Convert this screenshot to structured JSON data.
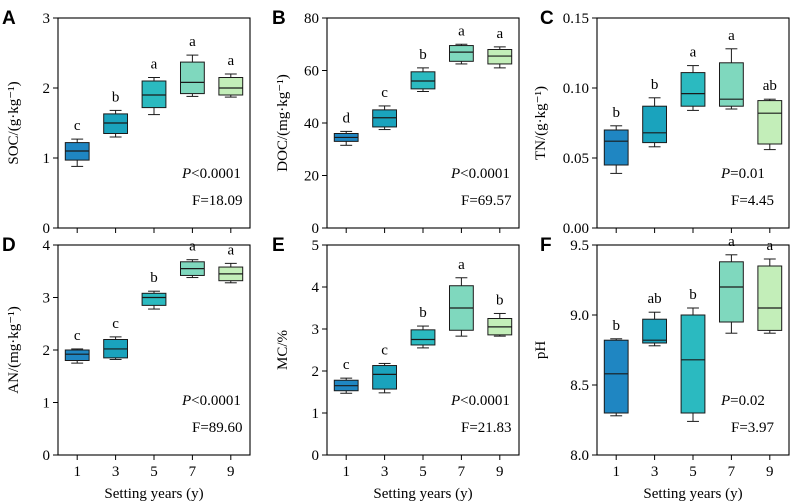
{
  "figure": {
    "xlabel": "Setting years (y)",
    "categories": [
      "1",
      "3",
      "5",
      "7",
      "9"
    ],
    "colors": [
      "#1f86c2",
      "#1aa3bd",
      "#2bbac0",
      "#7fd8be",
      "#c3eeb9"
    ]
  },
  "chart_data": [
    {
      "type": "box",
      "panel": "A",
      "ylabel": "SOC/(g·kg⁻¹)",
      "ylim": [
        0,
        3
      ],
      "yticks": [
        "0",
        "1",
        "2",
        "3"
      ],
      "boxes": [
        {
          "min": 0.88,
          "q1": 0.97,
          "median": 1.1,
          "q3": 1.22,
          "max": 1.27,
          "letter": "c"
        },
        {
          "min": 1.3,
          "q1": 1.35,
          "median": 1.5,
          "q3": 1.63,
          "max": 1.68,
          "letter": "b"
        },
        {
          "min": 1.62,
          "q1": 1.72,
          "median": 1.9,
          "q3": 2.1,
          "max": 2.15,
          "letter": "a"
        },
        {
          "min": 1.88,
          "q1": 1.92,
          "median": 2.08,
          "q3": 2.37,
          "max": 2.47,
          "letter": "a"
        },
        {
          "min": 1.87,
          "q1": 1.9,
          "median": 2.0,
          "q3": 2.15,
          "max": 2.2,
          "letter": "a"
        }
      ],
      "p_text": "<0.0001",
      "f_text": "F=18.09"
    },
    {
      "type": "box",
      "panel": "B",
      "ylabel": "DOC/(mg·kg⁻¹)",
      "ylim": [
        0,
        80
      ],
      "yticks": [
        "0",
        "20",
        "40",
        "60",
        "80"
      ],
      "boxes": [
        {
          "min": 31.5,
          "q1": 33,
          "median": 34.5,
          "q3": 36,
          "max": 36.8,
          "letter": "d"
        },
        {
          "min": 37.5,
          "q1": 38.5,
          "median": 42,
          "q3": 45,
          "max": 46.5,
          "letter": "c"
        },
        {
          "min": 52,
          "q1": 53,
          "median": 56,
          "q3": 59.5,
          "max": 61,
          "letter": "b"
        },
        {
          "min": 62.5,
          "q1": 63.5,
          "median": 67,
          "q3": 69.5,
          "max": 70,
          "letter": "a"
        },
        {
          "min": 61,
          "q1": 62.5,
          "median": 65.5,
          "q3": 68,
          "max": 69,
          "letter": "a"
        }
      ],
      "p_text": "<0.0001",
      "f_text": "F=69.57"
    },
    {
      "type": "box",
      "panel": "C",
      "ylabel": "TN/(g·kg⁻¹)",
      "ylim": [
        0,
        0.15
      ],
      "yticks": [
        "0.00",
        "0.05",
        "0.10",
        "0.15"
      ],
      "boxes": [
        {
          "min": 0.039,
          "q1": 0.045,
          "median": 0.062,
          "q3": 0.07,
          "max": 0.073,
          "letter": "b"
        },
        {
          "min": 0.058,
          "q1": 0.061,
          "median": 0.068,
          "q3": 0.087,
          "max": 0.093,
          "letter": "b"
        },
        {
          "min": 0.084,
          "q1": 0.087,
          "median": 0.096,
          "q3": 0.111,
          "max": 0.116,
          "letter": "a"
        },
        {
          "min": 0.085,
          "q1": 0.087,
          "median": 0.092,
          "q3": 0.118,
          "max": 0.128,
          "letter": "a"
        },
        {
          "min": 0.056,
          "q1": 0.06,
          "median": 0.082,
          "q3": 0.091,
          "max": 0.092,
          "letter": "ab"
        }
      ],
      "p_text": "=0.01",
      "f_text": "F=4.45"
    },
    {
      "type": "box",
      "panel": "D",
      "ylabel": "AN/(mg·kg⁻¹)",
      "ylim": [
        0,
        4
      ],
      "yticks": [
        "0",
        "1",
        "2",
        "3",
        "4"
      ],
      "boxes": [
        {
          "min": 1.75,
          "q1": 1.8,
          "median": 1.92,
          "q3": 2.0,
          "max": 2.02,
          "letter": "c"
        },
        {
          "min": 1.82,
          "q1": 1.85,
          "median": 2.02,
          "q3": 2.2,
          "max": 2.25,
          "letter": "c"
        },
        {
          "min": 2.78,
          "q1": 2.85,
          "median": 3.0,
          "q3": 3.08,
          "max": 3.12,
          "letter": "b"
        },
        {
          "min": 3.38,
          "q1": 3.42,
          "median": 3.55,
          "q3": 3.68,
          "max": 3.72,
          "letter": "a"
        },
        {
          "min": 3.28,
          "q1": 3.32,
          "median": 3.45,
          "q3": 3.58,
          "max": 3.65,
          "letter": "a"
        }
      ],
      "p_text": "<0.0001",
      "f_text": "F=89.60"
    },
    {
      "type": "box",
      "panel": "E",
      "ylabel": "MC/%",
      "ylim": [
        0,
        5
      ],
      "yticks": [
        "0",
        "1",
        "2",
        "3",
        "4",
        "5"
      ],
      "boxes": [
        {
          "min": 1.47,
          "q1": 1.53,
          "median": 1.65,
          "q3": 1.78,
          "max": 1.83,
          "letter": "c"
        },
        {
          "min": 1.48,
          "q1": 1.57,
          "median": 1.92,
          "q3": 2.13,
          "max": 2.18,
          "letter": "c"
        },
        {
          "min": 2.55,
          "q1": 2.62,
          "median": 2.75,
          "q3": 2.98,
          "max": 3.07,
          "letter": "b"
        },
        {
          "min": 2.83,
          "q1": 2.97,
          "median": 3.5,
          "q3": 4.03,
          "max": 4.22,
          "letter": "a"
        },
        {
          "min": 2.83,
          "q1": 2.86,
          "median": 3.05,
          "q3": 3.25,
          "max": 3.37,
          "letter": "b"
        }
      ],
      "p_text": "<0.0001",
      "f_text": "F=21.83"
    },
    {
      "type": "box",
      "panel": "F",
      "ylabel": "pH",
      "ylim": [
        8.0,
        9.5
      ],
      "yticks": [
        "8.0",
        "8.5",
        "9.0",
        "9.5"
      ],
      "boxes": [
        {
          "min": 8.28,
          "q1": 8.3,
          "median": 8.58,
          "q3": 8.82,
          "max": 8.83,
          "letter": "b"
        },
        {
          "min": 8.78,
          "q1": 8.8,
          "median": 8.82,
          "q3": 8.97,
          "max": 9.02,
          "letter": "ab"
        },
        {
          "min": 8.24,
          "q1": 8.3,
          "median": 8.68,
          "q3": 9.0,
          "max": 9.05,
          "letter": "b"
        },
        {
          "min": 8.87,
          "q1": 8.95,
          "median": 9.2,
          "q3": 9.38,
          "max": 9.43,
          "letter": "a"
        },
        {
          "min": 8.87,
          "q1": 8.89,
          "median": 9.05,
          "q3": 9.35,
          "max": 9.4,
          "letter": "a"
        }
      ],
      "p_text": "=0.02",
      "f_text": "F=3.97"
    }
  ]
}
